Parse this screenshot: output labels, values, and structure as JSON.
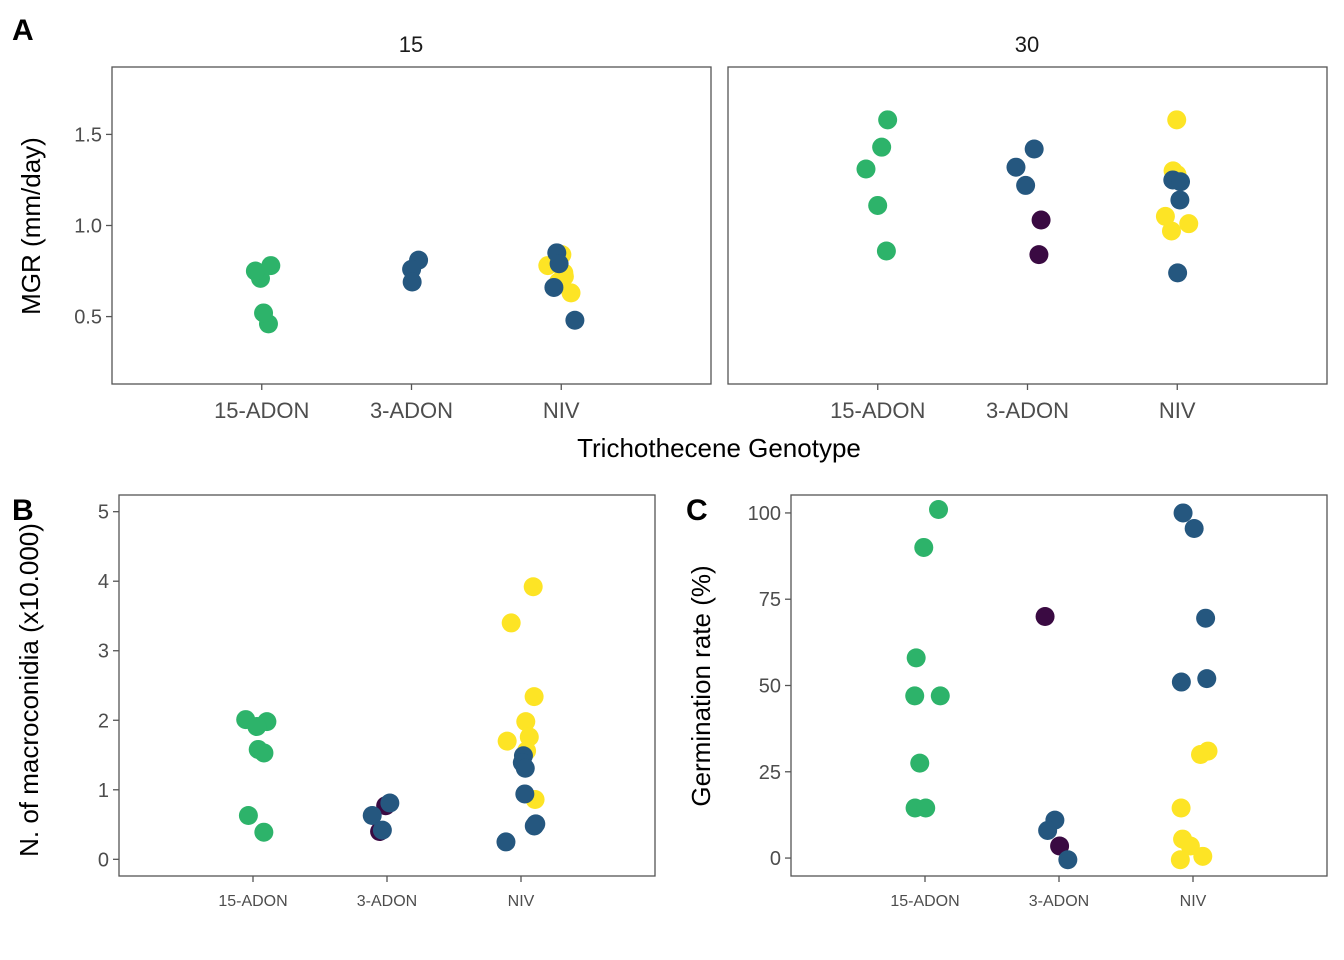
{
  "panel_labels": {
    "a": "A",
    "b": "B",
    "c": "C"
  },
  "colors": {
    "15-ADON": "#2db36a",
    "3-ADON": "#25577f",
    "NIV": "#fde425",
    "other": "#3a0a42",
    "panel_border": "#555555",
    "tick": "#555555",
    "tick_label": "#4d4d4d"
  },
  "chart_data": [
    {
      "type": "scatter",
      "panel": "A",
      "xlabel": "Trichothecene Genotype",
      "ylabel": "MGR (mm/day)",
      "categories": [
        "15-ADON",
        "3-ADON",
        "NIV"
      ],
      "ylim": [
        0.13,
        1.87
      ],
      "yticks": [
        0.5,
        1.0,
        1.5
      ],
      "ytick_labels": [
        "0.5",
        "1.0",
        "1.5"
      ],
      "grid": false,
      "facets": [
        {
          "label": "15",
          "points": [
            {
              "x": "15-ADON",
              "y": 0.46,
              "color": "15-ADON"
            },
            {
              "x": "15-ADON",
              "y": 0.52,
              "color": "15-ADON"
            },
            {
              "x": "15-ADON",
              "y": 0.71,
              "color": "15-ADON"
            },
            {
              "x": "15-ADON",
              "y": 0.75,
              "color": "15-ADON"
            },
            {
              "x": "15-ADON",
              "y": 0.78,
              "color": "15-ADON"
            },
            {
              "x": "3-ADON",
              "y": 0.81,
              "color": "3-ADON"
            },
            {
              "x": "3-ADON",
              "y": 0.76,
              "color": "3-ADON"
            },
            {
              "x": "3-ADON",
              "y": 0.69,
              "color": "3-ADON"
            },
            {
              "x": "NIV",
              "y": 0.84,
              "color": "NIV"
            },
            {
              "x": "NIV",
              "y": 0.78,
              "color": "NIV"
            },
            {
              "x": "NIV",
              "y": 0.74,
              "color": "NIV"
            },
            {
              "x": "NIV",
              "y": 0.72,
              "color": "NIV"
            },
            {
              "x": "NIV",
              "y": 0.69,
              "color": "NIV"
            },
            {
              "x": "NIV",
              "y": 0.63,
              "color": "NIV"
            },
            {
              "x": "NIV",
              "y": 0.85,
              "color": "3-ADON"
            },
            {
              "x": "NIV",
              "y": 0.79,
              "color": "3-ADON"
            },
            {
              "x": "NIV",
              "y": 0.66,
              "color": "3-ADON"
            },
            {
              "x": "NIV",
              "y": 0.48,
              "color": "3-ADON"
            }
          ]
        },
        {
          "label": "30",
          "points": [
            {
              "x": "15-ADON",
              "y": 1.58,
              "color": "15-ADON"
            },
            {
              "x": "15-ADON",
              "y": 1.43,
              "color": "15-ADON"
            },
            {
              "x": "15-ADON",
              "y": 1.31,
              "color": "15-ADON"
            },
            {
              "x": "15-ADON",
              "y": 1.11,
              "color": "15-ADON"
            },
            {
              "x": "15-ADON",
              "y": 0.86,
              "color": "15-ADON"
            },
            {
              "x": "3-ADON",
              "y": 1.42,
              "color": "3-ADON"
            },
            {
              "x": "3-ADON",
              "y": 1.32,
              "color": "3-ADON"
            },
            {
              "x": "3-ADON",
              "y": 1.22,
              "color": "3-ADON"
            },
            {
              "x": "3-ADON",
              "y": 1.03,
              "color": "other"
            },
            {
              "x": "3-ADON",
              "y": 0.84,
              "color": "other"
            },
            {
              "x": "NIV",
              "y": 1.58,
              "color": "NIV"
            },
            {
              "x": "NIV",
              "y": 1.3,
              "color": "NIV"
            },
            {
              "x": "NIV",
              "y": 1.28,
              "color": "NIV"
            },
            {
              "x": "NIV",
              "y": 1.05,
              "color": "NIV"
            },
            {
              "x": "NIV",
              "y": 1.01,
              "color": "NIV"
            },
            {
              "x": "NIV",
              "y": 0.97,
              "color": "NIV"
            },
            {
              "x": "NIV",
              "y": 1.25,
              "color": "3-ADON"
            },
            {
              "x": "NIV",
              "y": 1.24,
              "color": "3-ADON"
            },
            {
              "x": "NIV",
              "y": 1.14,
              "color": "3-ADON"
            },
            {
              "x": "NIV",
              "y": 0.74,
              "color": "3-ADON"
            }
          ]
        }
      ]
    },
    {
      "type": "scatter",
      "panel": "B",
      "xlabel": "",
      "ylabel": "N. of macroconidia (x10.000)",
      "categories": [
        "15-ADON",
        "3-ADON",
        "NIV"
      ],
      "ylim": [
        -0.24,
        5.24
      ],
      "yticks": [
        0,
        1,
        2,
        3,
        4,
        5
      ],
      "ytick_labels": [
        "0",
        "1",
        "2",
        "3",
        "4",
        "5"
      ],
      "grid": false,
      "points": [
        {
          "x": "15-ADON",
          "y": 2.01,
          "color": "15-ADON"
        },
        {
          "x": "15-ADON",
          "y": 1.98,
          "color": "15-ADON"
        },
        {
          "x": "15-ADON",
          "y": 1.91,
          "color": "15-ADON"
        },
        {
          "x": "15-ADON",
          "y": 1.58,
          "color": "15-ADON"
        },
        {
          "x": "15-ADON",
          "y": 1.53,
          "color": "15-ADON"
        },
        {
          "x": "15-ADON",
          "y": 0.63,
          "color": "15-ADON"
        },
        {
          "x": "15-ADON",
          "y": 0.39,
          "color": "15-ADON"
        },
        {
          "x": "3-ADON",
          "y": 0.77,
          "color": "other"
        },
        {
          "x": "3-ADON",
          "y": 0.4,
          "color": "other"
        },
        {
          "x": "3-ADON",
          "y": 0.81,
          "color": "3-ADON"
        },
        {
          "x": "3-ADON",
          "y": 0.63,
          "color": "3-ADON"
        },
        {
          "x": "3-ADON",
          "y": 0.42,
          "color": "3-ADON"
        },
        {
          "x": "NIV",
          "y": 3.92,
          "color": "NIV"
        },
        {
          "x": "NIV",
          "y": 3.4,
          "color": "NIV"
        },
        {
          "x": "NIV",
          "y": 2.34,
          "color": "NIV"
        },
        {
          "x": "NIV",
          "y": 1.98,
          "color": "NIV"
        },
        {
          "x": "NIV",
          "y": 1.76,
          "color": "NIV"
        },
        {
          "x": "NIV",
          "y": 1.7,
          "color": "NIV"
        },
        {
          "x": "NIV",
          "y": 1.56,
          "color": "NIV"
        },
        {
          "x": "NIV",
          "y": 0.86,
          "color": "NIV"
        },
        {
          "x": "NIV",
          "y": 1.49,
          "color": "3-ADON"
        },
        {
          "x": "NIV",
          "y": 1.39,
          "color": "3-ADON"
        },
        {
          "x": "NIV",
          "y": 1.31,
          "color": "3-ADON"
        },
        {
          "x": "NIV",
          "y": 0.94,
          "color": "3-ADON"
        },
        {
          "x": "NIV",
          "y": 0.51,
          "color": "3-ADON"
        },
        {
          "x": "NIV",
          "y": 0.48,
          "color": "3-ADON"
        },
        {
          "x": "NIV",
          "y": 0.25,
          "color": "3-ADON"
        }
      ]
    },
    {
      "type": "scatter",
      "panel": "C",
      "xlabel": "",
      "ylabel": "Germination rate (%)",
      "categories": [
        "15-ADON",
        "3-ADON",
        "NIV"
      ],
      "ylim": [
        -5.2,
        105.2
      ],
      "yticks": [
        0,
        25,
        50,
        75,
        100
      ],
      "ytick_labels": [
        "0",
        "25",
        "50",
        "75",
        "100"
      ],
      "grid": false,
      "points": [
        {
          "x": "15-ADON",
          "y": 101,
          "color": "15-ADON"
        },
        {
          "x": "15-ADON",
          "y": 90,
          "color": "15-ADON"
        },
        {
          "x": "15-ADON",
          "y": 58,
          "color": "15-ADON"
        },
        {
          "x": "15-ADON",
          "y": 47,
          "color": "15-ADON"
        },
        {
          "x": "15-ADON",
          "y": 47,
          "color": "15-ADON"
        },
        {
          "x": "15-ADON",
          "y": 27.5,
          "color": "15-ADON"
        },
        {
          "x": "15-ADON",
          "y": 14.5,
          "color": "15-ADON"
        },
        {
          "x": "15-ADON",
          "y": 14.5,
          "color": "15-ADON"
        },
        {
          "x": "3-ADON",
          "y": 70,
          "color": "other"
        },
        {
          "x": "3-ADON",
          "y": 3.5,
          "color": "other"
        },
        {
          "x": "3-ADON",
          "y": 11,
          "color": "3-ADON"
        },
        {
          "x": "3-ADON",
          "y": 8,
          "color": "3-ADON"
        },
        {
          "x": "3-ADON",
          "y": -0.5,
          "color": "3-ADON"
        },
        {
          "x": "NIV",
          "y": 100,
          "color": "3-ADON"
        },
        {
          "x": "NIV",
          "y": 95.5,
          "color": "3-ADON"
        },
        {
          "x": "NIV",
          "y": 69.5,
          "color": "3-ADON"
        },
        {
          "x": "NIV",
          "y": 52,
          "color": "3-ADON"
        },
        {
          "x": "NIV",
          "y": 51,
          "color": "3-ADON"
        },
        {
          "x": "NIV",
          "y": 31,
          "color": "NIV"
        },
        {
          "x": "NIV",
          "y": 30,
          "color": "NIV"
        },
        {
          "x": "NIV",
          "y": 14.5,
          "color": "NIV"
        },
        {
          "x": "NIV",
          "y": 5.5,
          "color": "NIV"
        },
        {
          "x": "NIV",
          "y": 3.5,
          "color": "NIV"
        },
        {
          "x": "NIV",
          "y": 0.5,
          "color": "NIV"
        },
        {
          "x": "NIV",
          "y": -0.5,
          "color": "NIV"
        }
      ]
    }
  ]
}
